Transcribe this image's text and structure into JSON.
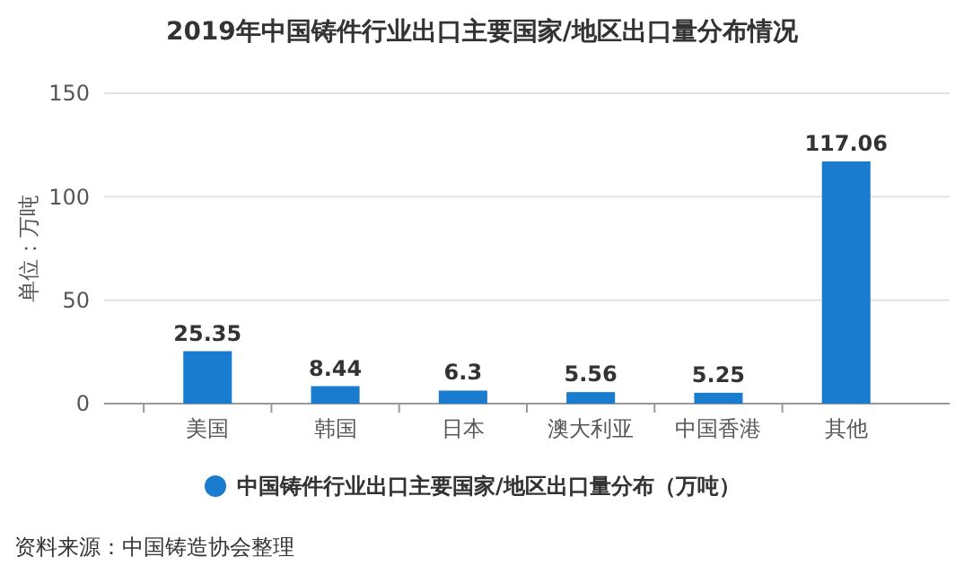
{
  "chart_data": {
    "type": "bar",
    "title": "2019年中国铸件行业出口主要国家/地区出口量分布情况",
    "ylabel": "单位：万吨",
    "categories": [
      "美国",
      "韩国",
      "日本",
      "澳大利亚",
      "中国香港",
      "其他"
    ],
    "series": [
      {
        "name": "中国铸件行业出口主要国家/地区出口量分布（万吨）",
        "color": "#1a7ccf",
        "values": [
          25.35,
          8.44,
          6.3,
          5.56,
          5.25,
          117.06
        ]
      }
    ],
    "ylim": [
      0,
      150
    ],
    "yticks": [
      0,
      50,
      100,
      150
    ],
    "grid": "y",
    "legend": "bottom",
    "data_labels": true,
    "annotations": [
      "资料来源：中国铸造协会整理"
    ]
  }
}
